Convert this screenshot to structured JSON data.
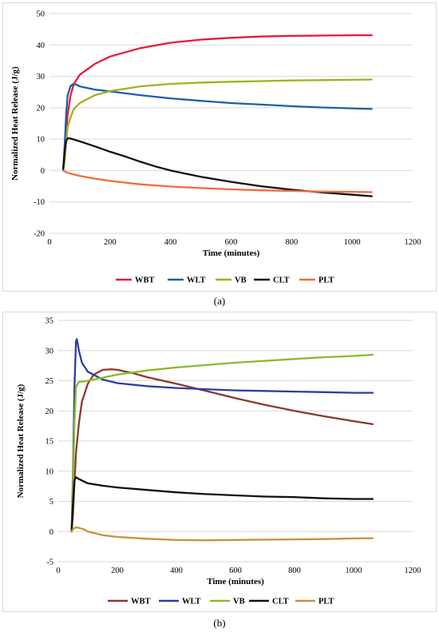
{
  "chart_data": [
    {
      "type": "line",
      "panel": "a",
      "caption": "(a)",
      "xlabel": "Time (minutes)",
      "ylabel": "Normalized Heat Release (J/g)",
      "xlim": [
        0,
        1200
      ],
      "ylim": [
        -20,
        50
      ],
      "xticks": [
        0,
        200,
        400,
        600,
        800,
        1000,
        1200
      ],
      "yticks": [
        -20,
        -10,
        0,
        10,
        20,
        30,
        40,
        50
      ],
      "grid": "horizontal",
      "legend_position": "bottom",
      "series": [
        {
          "name": "WBT",
          "color": "#e8193c",
          "points": [
            [
              45,
              0
            ],
            [
              50,
              5
            ],
            [
              55,
              12
            ],
            [
              60,
              18
            ],
            [
              70,
              24
            ],
            [
              80,
              27.5
            ],
            [
              100,
              30.5
            ],
            [
              150,
              34
            ],
            [
              200,
              36.3
            ],
            [
              300,
              39
            ],
            [
              400,
              40.7
            ],
            [
              500,
              41.7
            ],
            [
              600,
              42.3
            ],
            [
              700,
              42.7
            ],
            [
              800,
              42.9
            ],
            [
              900,
              43
            ],
            [
              1000,
              43.1
            ],
            [
              1065,
              43.1
            ]
          ]
        },
        {
          "name": "WLT",
          "color": "#1f5fa8",
          "points": [
            [
              45,
              0
            ],
            [
              50,
              8
            ],
            [
              55,
              18
            ],
            [
              60,
              24
            ],
            [
              70,
              27
            ],
            [
              80,
              27.6
            ],
            [
              90,
              27.3
            ],
            [
              100,
              26.8
            ],
            [
              150,
              25.8
            ],
            [
              200,
              25.2
            ],
            [
              300,
              24
            ],
            [
              400,
              23
            ],
            [
              500,
              22.2
            ],
            [
              600,
              21.5
            ],
            [
              700,
              21
            ],
            [
              800,
              20.5
            ],
            [
              900,
              20.1
            ],
            [
              1000,
              19.8
            ],
            [
              1065,
              19.6
            ]
          ]
        },
        {
          "name": "VB",
          "color": "#a4b01e",
          "points": [
            [
              45,
              0
            ],
            [
              50,
              3
            ],
            [
              55,
              9
            ],
            [
              60,
              14
            ],
            [
              70,
              17
            ],
            [
              80,
              19.5
            ],
            [
              100,
              21.5
            ],
            [
              150,
              24
            ],
            [
              200,
              25.3
            ],
            [
              300,
              26.8
            ],
            [
              400,
              27.6
            ],
            [
              500,
              28
            ],
            [
              600,
              28.3
            ],
            [
              700,
              28.5
            ],
            [
              800,
              28.7
            ],
            [
              900,
              28.8
            ],
            [
              1000,
              28.9
            ],
            [
              1065,
              29
            ]
          ]
        },
        {
          "name": "CLT",
          "color": "#111111",
          "points": [
            [
              45,
              0
            ],
            [
              50,
              6
            ],
            [
              55,
              9.5
            ],
            [
              60,
              10.3
            ],
            [
              70,
              10.2
            ],
            [
              100,
              9.3
            ],
            [
              150,
              7.7
            ],
            [
              200,
              6
            ],
            [
              250,
              4.5
            ],
            [
              300,
              2.8
            ],
            [
              350,
              1.3
            ],
            [
              400,
              0
            ],
            [
              450,
              -1
            ],
            [
              500,
              -2
            ],
            [
              600,
              -3.6
            ],
            [
              700,
              -5
            ],
            [
              800,
              -6.1
            ],
            [
              900,
              -7
            ],
            [
              1000,
              -7.7
            ],
            [
              1065,
              -8.2
            ]
          ]
        },
        {
          "name": "PLT",
          "color": "#f26b3a",
          "points": [
            [
              45,
              0
            ],
            [
              55,
              -0.5
            ],
            [
              70,
              -1
            ],
            [
              100,
              -1.7
            ],
            [
              150,
              -2.6
            ],
            [
              200,
              -3.3
            ],
            [
              300,
              -4.4
            ],
            [
              400,
              -5.1
            ],
            [
              500,
              -5.6
            ],
            [
              600,
              -6
            ],
            [
              700,
              -6.3
            ],
            [
              800,
              -6.5
            ],
            [
              900,
              -6.7
            ],
            [
              1000,
              -6.8
            ],
            [
              1065,
              -6.9
            ]
          ]
        }
      ]
    },
    {
      "type": "line",
      "panel": "b",
      "caption": "(b)",
      "xlabel": "Time (minutes)",
      "ylabel": "Normalized Heat Release (J/g)",
      "xlim": [
        0,
        1200
      ],
      "ylim": [
        -5,
        35
      ],
      "xticks": [
        0,
        200,
        400,
        600,
        800,
        1000,
        1200
      ],
      "yticks": [
        -5,
        0,
        5,
        10,
        15,
        20,
        25,
        30,
        35
      ],
      "grid": "horizontal",
      "legend_position": "bottom",
      "series": [
        {
          "name": "WBT",
          "color": "#8b3a2a",
          "points": [
            [
              45,
              0
            ],
            [
              50,
              3
            ],
            [
              55,
              8
            ],
            [
              60,
              13
            ],
            [
              70,
              18
            ],
            [
              80,
              21.5
            ],
            [
              100,
              24.5
            ],
            [
              120,
              26
            ],
            [
              150,
              26.8
            ],
            [
              180,
              26.9
            ],
            [
              200,
              26.8
            ],
            [
              250,
              26.3
            ],
            [
              300,
              25.6
            ],
            [
              400,
              24.5
            ],
            [
              500,
              23.3
            ],
            [
              600,
              22.1
            ],
            [
              700,
              21
            ],
            [
              800,
              20
            ],
            [
              900,
              19.1
            ],
            [
              1000,
              18.3
            ],
            [
              1065,
              17.8
            ]
          ]
        },
        {
          "name": "WLT",
          "color": "#2b3fa0",
          "points": [
            [
              45,
              0
            ],
            [
              50,
              10
            ],
            [
              55,
              24
            ],
            [
              60,
              31.5
            ],
            [
              63,
              31.9
            ],
            [
              70,
              30
            ],
            [
              80,
              28
            ],
            [
              100,
              26.5
            ],
            [
              150,
              25.2
            ],
            [
              200,
              24.6
            ],
            [
              300,
              24.1
            ],
            [
              400,
              23.8
            ],
            [
              500,
              23.6
            ],
            [
              600,
              23.4
            ],
            [
              700,
              23.3
            ],
            [
              800,
              23.2
            ],
            [
              900,
              23.1
            ],
            [
              1000,
              23
            ],
            [
              1065,
              23
            ]
          ]
        },
        {
          "name": "VB",
          "color": "#8cb82a",
          "points": [
            [
              45,
              0
            ],
            [
              50,
              8
            ],
            [
              55,
              18
            ],
            [
              60,
              24
            ],
            [
              70,
              24.8
            ],
            [
              90,
              24.9
            ],
            [
              120,
              25.2
            ],
            [
              200,
              26
            ],
            [
              300,
              26.7
            ],
            [
              400,
              27.2
            ],
            [
              500,
              27.6
            ],
            [
              600,
              28
            ],
            [
              700,
              28.3
            ],
            [
              800,
              28.6
            ],
            [
              900,
              28.9
            ],
            [
              1000,
              29.1
            ],
            [
              1065,
              29.3
            ]
          ]
        },
        {
          "name": "CLT",
          "color": "#111111",
          "points": [
            [
              45,
              0
            ],
            [
              50,
              5
            ],
            [
              55,
              8.5
            ],
            [
              60,
              9
            ],
            [
              70,
              8.7
            ],
            [
              100,
              8
            ],
            [
              150,
              7.6
            ],
            [
              200,
              7.3
            ],
            [
              300,
              6.9
            ],
            [
              400,
              6.5
            ],
            [
              500,
              6.2
            ],
            [
              600,
              6
            ],
            [
              700,
              5.8
            ],
            [
              800,
              5.7
            ],
            [
              900,
              5.5
            ],
            [
              1000,
              5.4
            ],
            [
              1065,
              5.4
            ]
          ]
        },
        {
          "name": "PLT",
          "color": "#c4943a",
          "points": [
            [
              45,
              0
            ],
            [
              50,
              0.4
            ],
            [
              60,
              0.7
            ],
            [
              70,
              0.6
            ],
            [
              90,
              0.3
            ],
            [
              100,
              0
            ],
            [
              150,
              -0.6
            ],
            [
              200,
              -0.9
            ],
            [
              300,
              -1.2
            ],
            [
              400,
              -1.4
            ],
            [
              500,
              -1.45
            ],
            [
              600,
              -1.4
            ],
            [
              700,
              -1.35
            ],
            [
              800,
              -1.3
            ],
            [
              900,
              -1.25
            ],
            [
              1000,
              -1.15
            ],
            [
              1065,
              -1.1
            ]
          ]
        }
      ]
    }
  ]
}
